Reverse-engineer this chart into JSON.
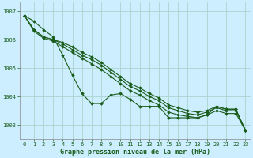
{
  "title": "Graphe pression niveau de la mer (hPa)",
  "bg_color": "#cceeff",
  "grid_color": "#aad4cc",
  "line_color": "#1a5c1a",
  "marker_color": "#1a5c1a",
  "xlim": [
    -0.5,
    23.5
  ],
  "ylim": [
    1002.5,
    1007.3
  ],
  "yticks": [
    1003,
    1004,
    1005,
    1006,
    1007
  ],
  "xticks": [
    0,
    1,
    2,
    3,
    4,
    5,
    6,
    7,
    8,
    9,
    10,
    11,
    12,
    13,
    14,
    15,
    16,
    17,
    18,
    19,
    20,
    21,
    22,
    23
  ],
  "series": [
    [
      1006.85,
      1006.65,
      1006.35,
      1006.1,
      1005.45,
      1004.75,
      1004.1,
      1003.75,
      1003.75,
      1004.05,
      1004.1,
      1003.9,
      1003.65,
      1003.65,
      1003.65,
      1003.25,
      1003.25,
      1003.25,
      1003.25,
      1003.35,
      1003.65,
      1003.55,
      1003.55,
      1002.8
    ],
    [
      1006.85,
      1006.35,
      1006.1,
      1006.0,
      1005.9,
      1005.75,
      1005.55,
      1005.4,
      1005.2,
      1004.95,
      1004.7,
      1004.45,
      1004.3,
      1004.1,
      1003.95,
      1003.7,
      1003.6,
      1003.5,
      1003.45,
      1003.5,
      1003.65,
      1003.55,
      1003.55,
      1002.8
    ],
    [
      1006.85,
      1006.35,
      1006.1,
      1006.0,
      1005.85,
      1005.65,
      1005.45,
      1005.3,
      1005.1,
      1004.85,
      1004.6,
      1004.35,
      1004.2,
      1004.0,
      1003.85,
      1003.6,
      1003.5,
      1003.4,
      1003.35,
      1003.45,
      1003.6,
      1003.5,
      1003.5,
      1002.8
    ],
    [
      1006.85,
      1006.3,
      1006.05,
      1005.95,
      1005.75,
      1005.55,
      1005.35,
      1005.15,
      1004.95,
      1004.7,
      1004.45,
      1004.2,
      1004.05,
      1003.85,
      1003.7,
      1003.45,
      1003.35,
      1003.3,
      1003.25,
      1003.35,
      1003.5,
      1003.4,
      1003.4,
      1002.8
    ]
  ]
}
